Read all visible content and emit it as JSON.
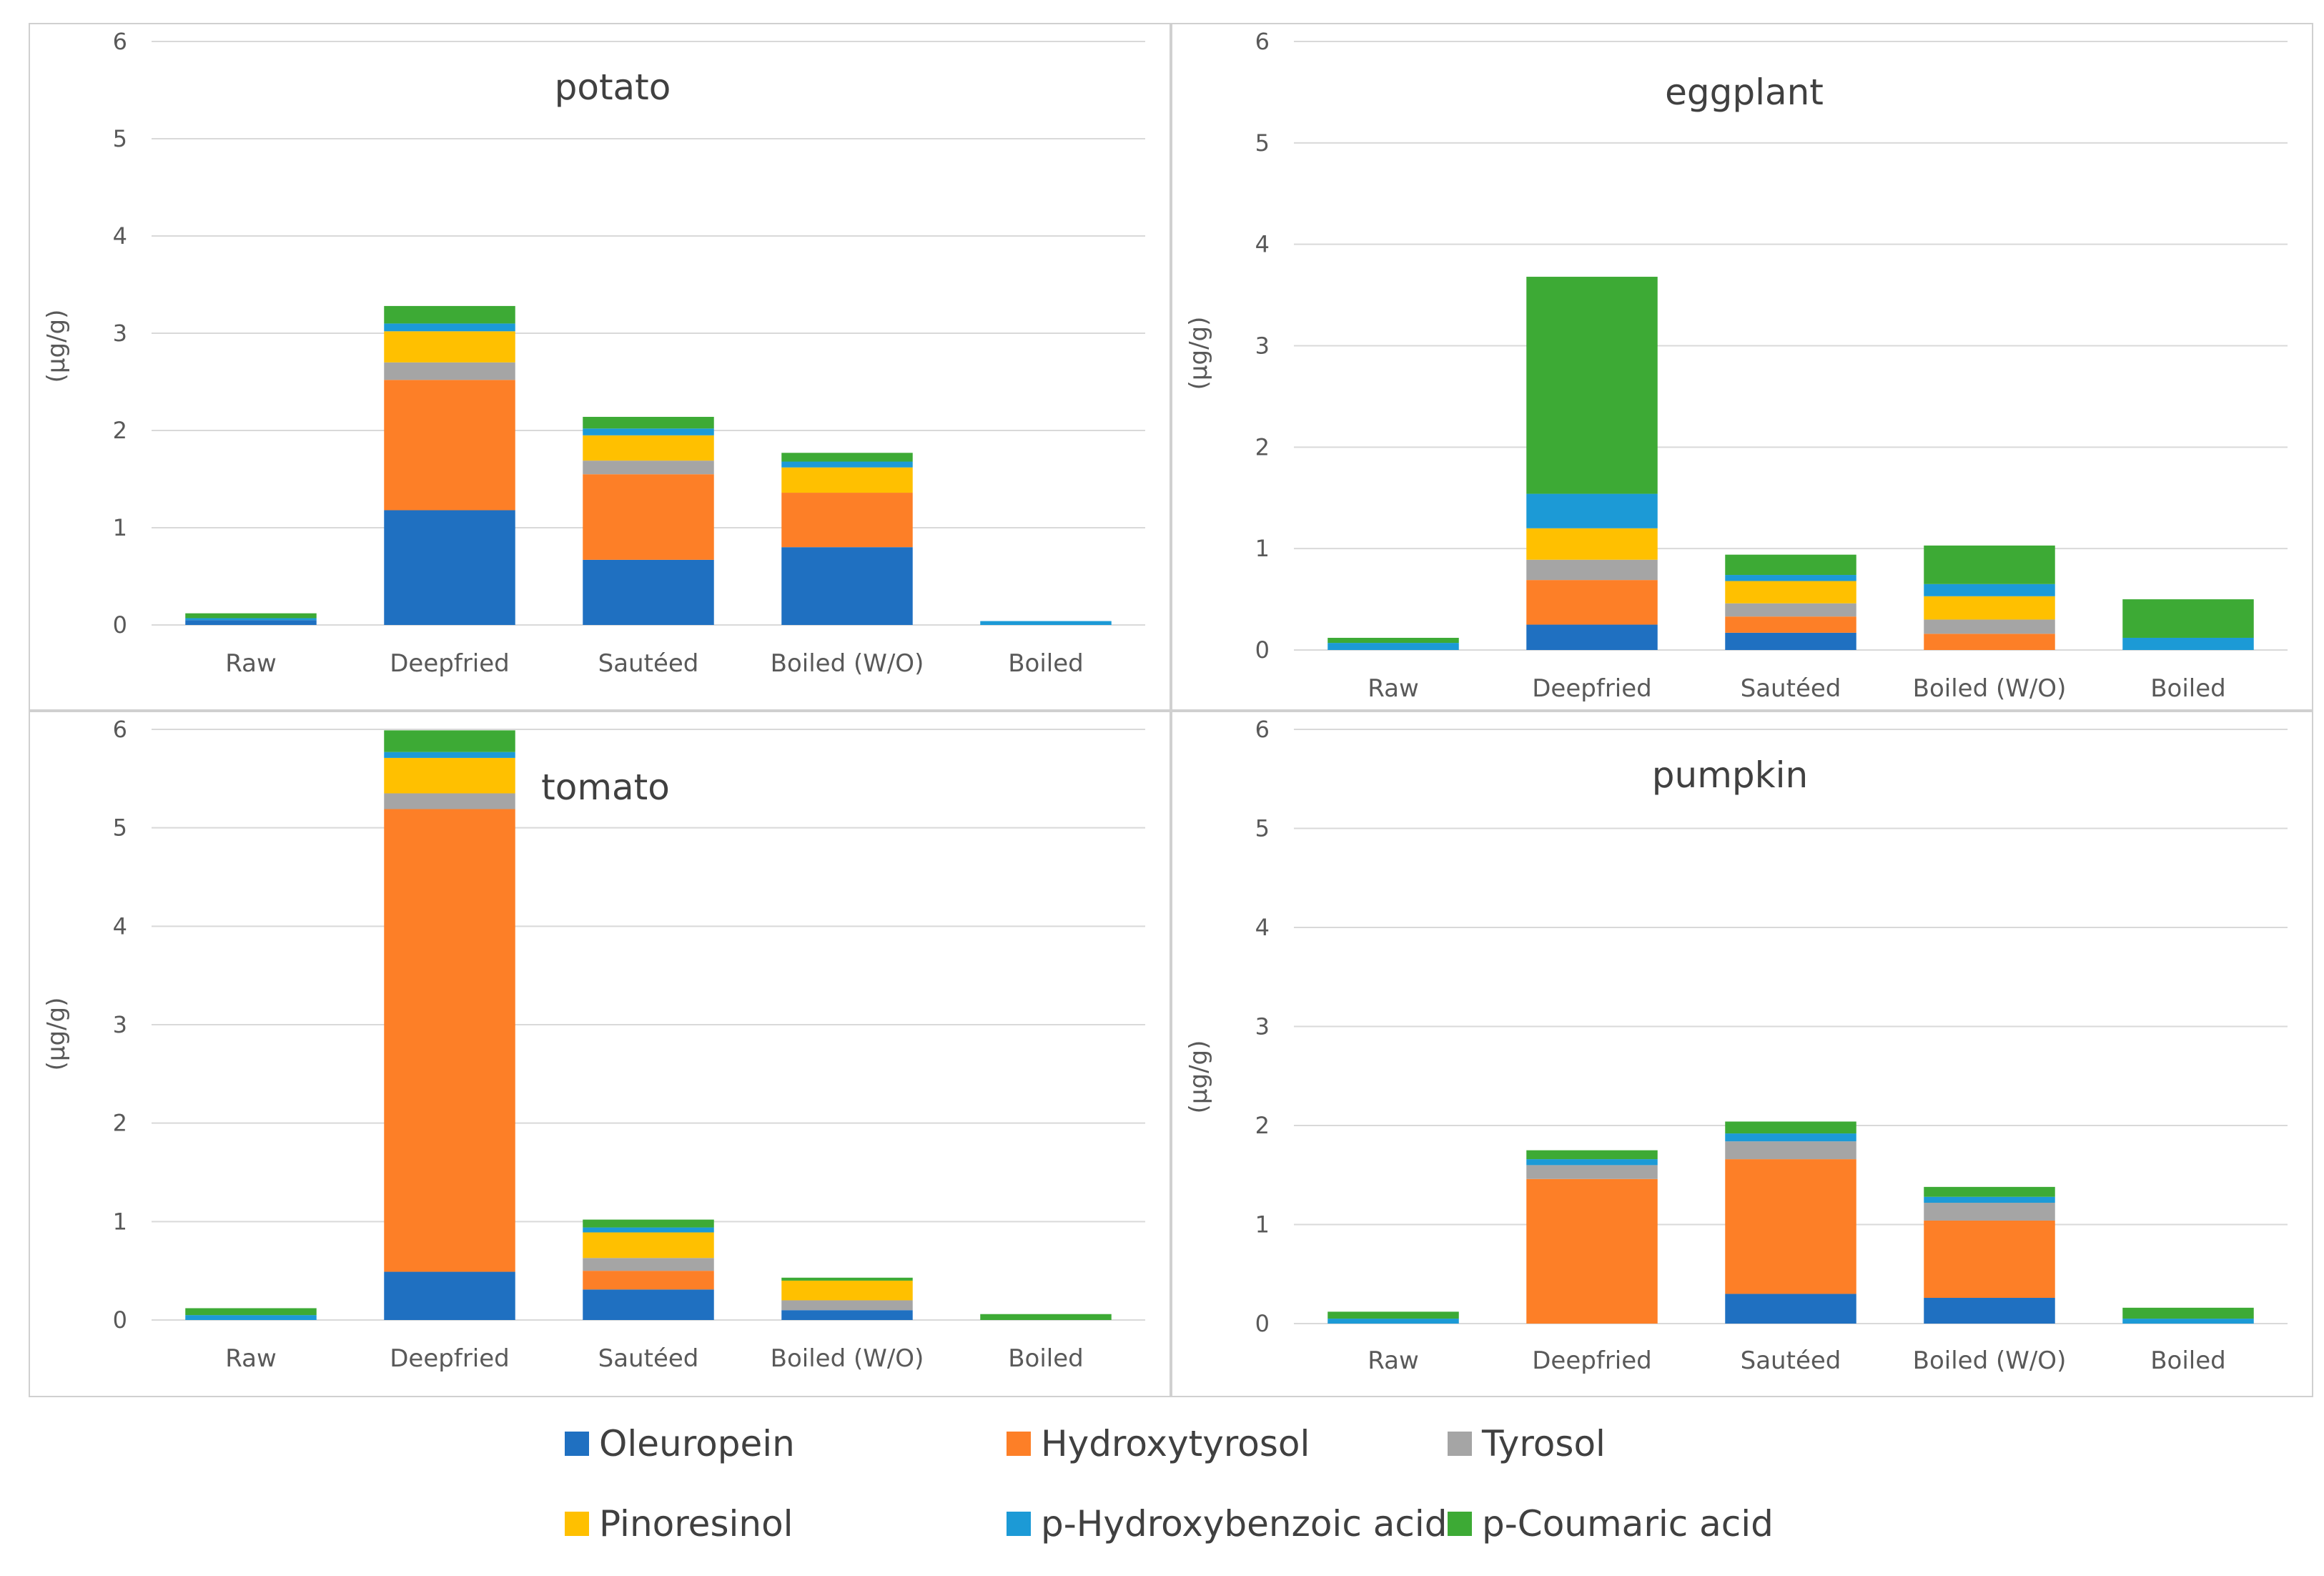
{
  "chart_data": [
    {
      "type": "bar",
      "stacked": true,
      "title": "potato",
      "ylabel": "(µg/g)",
      "ylim": [
        0,
        6
      ],
      "yticks": [
        "0",
        "1",
        "2",
        "3",
        "4",
        "5",
        "6"
      ],
      "grid": true,
      "categories": [
        "Raw",
        "Deepfried",
        "Sautéed",
        "Boiled (W/O)",
        "Boiled"
      ],
      "series": [
        {
          "name": "Oleuropein",
          "values": [
            0.05,
            1.18,
            0.67,
            0.8,
            0.0
          ]
        },
        {
          "name": "Hydroxytyrosol",
          "values": [
            0.0,
            1.34,
            0.88,
            0.56,
            0.0
          ]
        },
        {
          "name": "Tyrosol",
          "values": [
            0.0,
            0.18,
            0.14,
            0.0,
            0.0
          ]
        },
        {
          "name": "Pinoresinol",
          "values": [
            0.0,
            0.32,
            0.26,
            0.26,
            0.0
          ]
        },
        {
          "name": "p-Hydroxybenzoic acid",
          "values": [
            0.02,
            0.08,
            0.07,
            0.06,
            0.04
          ]
        },
        {
          "name": "p-Coumaric acid",
          "values": [
            0.05,
            0.18,
            0.12,
            0.09,
            0.0
          ]
        }
      ]
    },
    {
      "type": "bar",
      "stacked": true,
      "title": "eggplant",
      "ylabel": "(µg/g)",
      "ylim": [
        0,
        6
      ],
      "yticks": [
        "0",
        "1",
        "2",
        "3",
        "4",
        "5",
        "6"
      ],
      "grid": true,
      "categories": [
        "Raw",
        "Deepfried",
        "Sautéed",
        "Boiled (W/O)",
        "Boiled"
      ],
      "series": [
        {
          "name": "Oleuropein",
          "values": [
            0.0,
            0.25,
            0.17,
            0.0,
            0.0
          ]
        },
        {
          "name": "Hydroxytyrosol",
          "values": [
            0.0,
            0.44,
            0.16,
            0.16,
            0.0
          ]
        },
        {
          "name": "Tyrosol",
          "values": [
            0.0,
            0.2,
            0.13,
            0.14,
            0.0
          ]
        },
        {
          "name": "Pinoresinol",
          "values": [
            0.0,
            0.31,
            0.22,
            0.23,
            0.0
          ]
        },
        {
          "name": "p-Hydroxybenzoic acid",
          "values": [
            0.07,
            0.34,
            0.06,
            0.12,
            0.12
          ]
        },
        {
          "name": "p-Coumaric acid",
          "values": [
            0.05,
            2.14,
            0.2,
            0.38,
            0.38
          ]
        }
      ]
    },
    {
      "type": "bar",
      "stacked": true,
      "title": "tomato",
      "ylabel": "(µg/g)",
      "ylim": [
        0,
        6
      ],
      "yticks": [
        "0",
        "1",
        "2",
        "3",
        "4",
        "5",
        "6"
      ],
      "grid": true,
      "categories": [
        "Raw",
        "Deepfried",
        "Sautéed",
        "Boiled (W/O)",
        "Boiled"
      ],
      "series": [
        {
          "name": "Oleuropein",
          "values": [
            0.0,
            0.49,
            0.31,
            0.1,
            0.0
          ]
        },
        {
          "name": "Hydroxytyrosol",
          "values": [
            0.0,
            4.7,
            0.19,
            0.0,
            0.0
          ]
        },
        {
          "name": "Tyrosol",
          "values": [
            0.0,
            0.16,
            0.13,
            0.1,
            0.0
          ]
        },
        {
          "name": "Pinoresinol",
          "values": [
            0.0,
            0.36,
            0.26,
            0.2,
            0.0
          ]
        },
        {
          "name": "p-Hydroxybenzoic acid",
          "values": [
            0.05,
            0.06,
            0.05,
            0.0,
            0.0
          ]
        },
        {
          "name": "p-Coumaric acid",
          "values": [
            0.07,
            0.22,
            0.08,
            0.03,
            0.06
          ]
        }
      ]
    },
    {
      "type": "bar",
      "stacked": true,
      "title": "pumpkin",
      "ylabel": "(µg/g)",
      "ylim": [
        0,
        6
      ],
      "yticks": [
        "0",
        "1",
        "2",
        "3",
        "4",
        "5",
        "6"
      ],
      "grid": true,
      "categories": [
        "Raw",
        "Deepfried",
        "Sautéed",
        "Boiled (W/O)",
        "Boiled"
      ],
      "series": [
        {
          "name": "Oleuropein",
          "values": [
            0.0,
            0.0,
            0.3,
            0.26,
            0.0
          ]
        },
        {
          "name": "Hydroxytyrosol",
          "values": [
            0.0,
            1.46,
            1.36,
            0.78,
            0.0
          ]
        },
        {
          "name": "Tyrosol",
          "values": [
            0.0,
            0.14,
            0.18,
            0.18,
            0.0
          ]
        },
        {
          "name": "Pinoresinol",
          "values": [
            0.0,
            0.0,
            0.0,
            0.0,
            0.0
          ]
        },
        {
          "name": "p-Hydroxybenzoic acid",
          "values": [
            0.05,
            0.06,
            0.08,
            0.06,
            0.05
          ]
        },
        {
          "name": "p-Coumaric acid",
          "values": [
            0.07,
            0.09,
            0.12,
            0.1,
            0.11
          ]
        }
      ]
    }
  ],
  "legend": [
    {
      "name": "Oleuropein",
      "color": "#1f70c1"
    },
    {
      "name": "Hydroxytyrosol",
      "color": "#fd7f27"
    },
    {
      "name": "Tyrosol",
      "color": "#a5a5a5"
    },
    {
      "name": "Pinoresinol",
      "color": "#ffc000"
    },
    {
      "name": "p-Hydroxybenzoic acid",
      "color": "#1c9ad6"
    },
    {
      "name": "p-Coumaric acid",
      "color": "#3daa35"
    }
  ]
}
